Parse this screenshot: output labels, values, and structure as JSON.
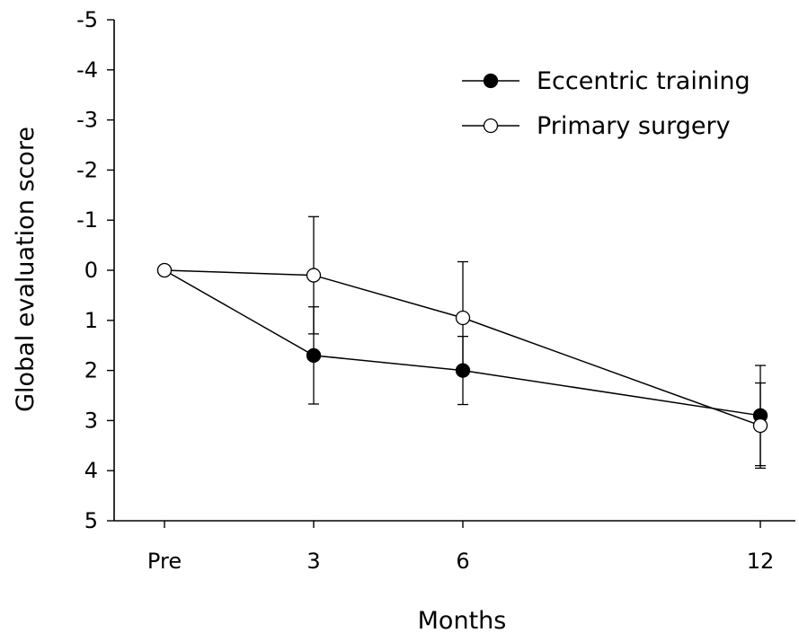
{
  "chart_data": {
    "type": "line",
    "xlabel": "Months",
    "ylabel": "Global evaluation score",
    "categories": [
      "Pre",
      "3",
      "6",
      "12"
    ],
    "x": [
      0,
      3,
      6,
      12
    ],
    "ylim": [
      -5,
      5
    ],
    "y_inverted": true,
    "y_ticks": [
      "-5",
      "-4",
      "-3",
      "-2",
      "-1",
      "0",
      "1",
      "2",
      "3",
      "4",
      "5"
    ],
    "grid": false,
    "legend_position": "top-right",
    "series": [
      {
        "name": "Eccentric training",
        "marker": "filled-circle",
        "color": "#000000",
        "values": [
          0,
          1.7,
          2.0,
          2.9
        ],
        "error": [
          null,
          0.97,
          0.68,
          1.0
        ]
      },
      {
        "name": "Primary surgery",
        "marker": "open-circle",
        "color": "#000000",
        "values": [
          0,
          0.1,
          0.95,
          3.1
        ],
        "error": [
          null,
          1.17,
          1.12,
          0.85
        ]
      }
    ]
  }
}
